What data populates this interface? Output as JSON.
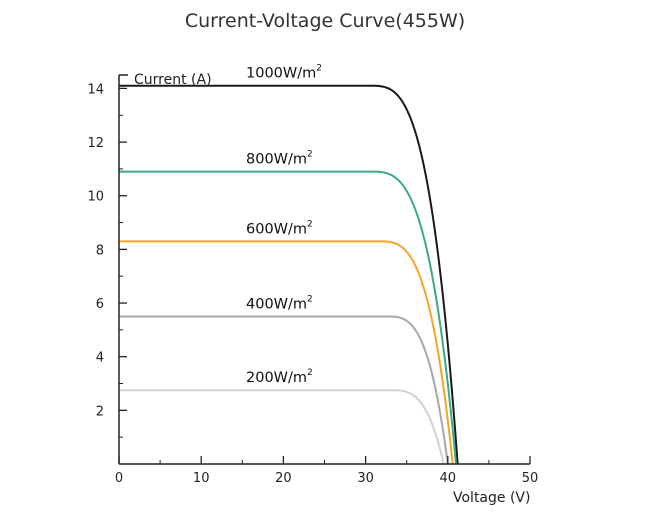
{
  "chart_data": {
    "type": "line",
    "title": "Current-Voltage Curve(455W)",
    "xlabel": "Voltage (V)",
    "ylabel": "Current (A)",
    "xlim": [
      0,
      50
    ],
    "ylim": [
      0,
      14.5
    ],
    "x_ticks": [
      "0",
      "10",
      "20",
      "30",
      "40",
      "50"
    ],
    "y_ticks": [
      "2",
      "4",
      "6",
      "8",
      "10",
      "12",
      "14"
    ],
    "grid": false,
    "series": [
      {
        "name": "1000W/m²",
        "label_base": "1000W/m",
        "label_sup": "2",
        "isc": 14.1,
        "voc": 41.2,
        "knee": 30.5,
        "color": "#1a1a1a"
      },
      {
        "name": "800W/m²",
        "label_base": "800W/m",
        "label_sup": "2",
        "isc": 10.9,
        "voc": 41.0,
        "knee": 30.5,
        "color": "#3aaa85"
      },
      {
        "name": "600W/m²",
        "label_base": "600W/m",
        "label_sup": "2",
        "isc": 8.3,
        "voc": 40.6,
        "knee": 31.5,
        "color": "#f5a623"
      },
      {
        "name": "400W/m²",
        "label_base": "400W/m",
        "label_sup": "2",
        "isc": 5.5,
        "voc": 40.0,
        "knee": 32.5,
        "color": "#a8a8a8"
      },
      {
        "name": "200W/m²",
        "label_base": "200W/m",
        "label_sup": "2",
        "isc": 2.75,
        "voc": 39.5,
        "knee": 33.0,
        "color": "#d2d2d2"
      }
    ]
  }
}
